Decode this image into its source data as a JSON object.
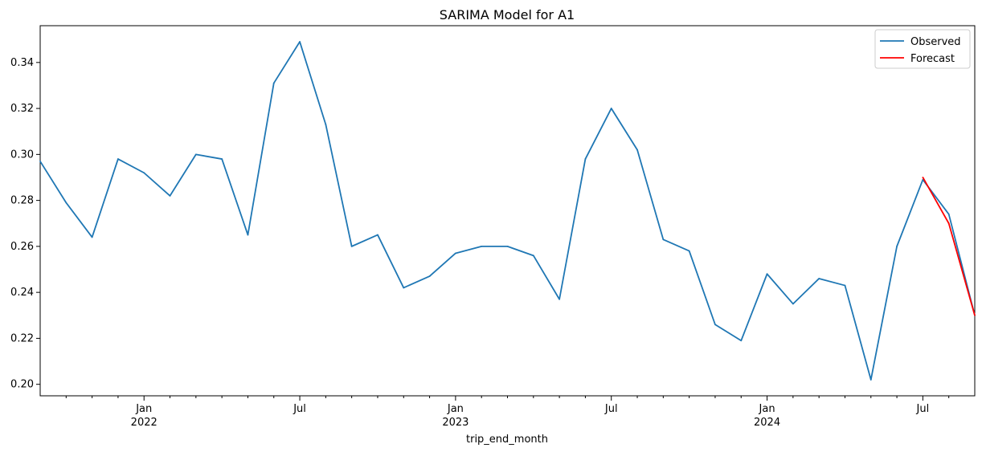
{
  "chart_data": {
    "type": "line",
    "title": "SARIMA Model for A1",
    "xlabel": "trip_end_month",
    "ylabel": "",
    "x_range": [
      "2021-09",
      "2024-09"
    ],
    "ylim": [
      0.195,
      0.356
    ],
    "y_ticks": [
      "0.20",
      "0.22",
      "0.24",
      "0.26",
      "0.28",
      "0.30",
      "0.32",
      "0.34"
    ],
    "x_tick_labels": [
      {
        "date": "2022-01",
        "month": "Jan",
        "year": "2022"
      },
      {
        "date": "2022-07",
        "month": "Jul",
        "year": ""
      },
      {
        "date": "2023-01",
        "month": "Jan",
        "year": "2023"
      },
      {
        "date": "2023-07",
        "month": "Jul",
        "year": ""
      },
      {
        "date": "2024-01",
        "month": "Jan",
        "year": "2024"
      },
      {
        "date": "2024-07",
        "month": "Jul",
        "year": ""
      }
    ],
    "grid": false,
    "legend_position": "top-right",
    "series": [
      {
        "name": "Observed",
        "color": "#1f77b4",
        "x": [
          "2021-09",
          "2021-10",
          "2021-11",
          "2021-12",
          "2022-01",
          "2022-02",
          "2022-03",
          "2022-04",
          "2022-05",
          "2022-06",
          "2022-07",
          "2022-08",
          "2022-09",
          "2022-10",
          "2022-11",
          "2022-12",
          "2023-01",
          "2023-02",
          "2023-03",
          "2023-04",
          "2023-05",
          "2023-06",
          "2023-07",
          "2023-08",
          "2023-09",
          "2023-10",
          "2023-11",
          "2023-12",
          "2024-01",
          "2024-02",
          "2024-03",
          "2024-04",
          "2024-05",
          "2024-06",
          "2024-07",
          "2024-08",
          "2024-09"
        ],
        "values": [
          0.297,
          0.279,
          0.264,
          0.298,
          0.292,
          0.282,
          0.3,
          0.298,
          0.265,
          0.331,
          0.349,
          0.313,
          0.26,
          0.265,
          0.242,
          0.247,
          0.257,
          0.26,
          0.26,
          0.256,
          0.237,
          0.298,
          0.32,
          0.302,
          0.263,
          0.258,
          0.226,
          0.219,
          0.248,
          0.235,
          0.246,
          0.243,
          0.202,
          0.26,
          0.289,
          0.274,
          0.23
        ]
      },
      {
        "name": "Forecast",
        "color": "#ff0000",
        "x": [
          "2024-07",
          "2024-08",
          "2024-09"
        ],
        "values": [
          0.29,
          0.27,
          0.23
        ]
      }
    ]
  }
}
